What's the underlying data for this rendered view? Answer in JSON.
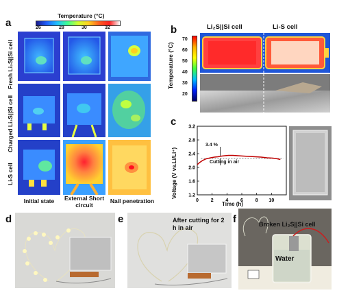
{
  "panel_a": {
    "label": "a",
    "colorbar_title": "Temperature (°C)",
    "colorbar_ticks": [
      "26",
      "28",
      "30",
      "32"
    ],
    "rows": [
      "Fresh Li₂S||Si cell",
      "Charged Li₂S||Si cell",
      "Li-S cell"
    ],
    "cols": [
      "Initial state",
      "External Short circuit",
      "Nail penetration"
    ]
  },
  "panel_b": {
    "label": "b",
    "left_title": "Li₂S||Si cell",
    "right_title": "Li-S cell",
    "ylabel": "Temperature (°C)",
    "colorbar_ticks": [
      "70",
      "60",
      "50",
      "40",
      "30",
      "20"
    ]
  },
  "panel_c": {
    "label": "c",
    "annotation_pct": "3.4 %",
    "annotation_text": "Cutting in air"
  },
  "panel_d": {
    "label": "d"
  },
  "panel_e": {
    "label": "e",
    "caption": "After cutting for 2 h in air"
  },
  "panel_f": {
    "label": "f",
    "caption": "Broken Li₂S||Si cell",
    "water_label": "Water"
  },
  "chart_data": {
    "type": "line",
    "xlabel": "Time (h)",
    "ylabel": "Voltage (V vs.Li/Li⁺)",
    "xlim": [
      0,
      12
    ],
    "ylim": [
      1.2,
      3.2
    ],
    "xticks": [
      0,
      2,
      4,
      6,
      8,
      10
    ],
    "yticks": [
      1.2,
      1.6,
      2.0,
      2.4,
      2.8,
      3.2
    ],
    "series": [
      {
        "x": [
          0,
          0.3,
          0.7,
          1.2,
          1.8,
          2.3,
          2.8,
          3.3,
          3.7,
          4.2,
          4.8,
          5.5,
          6.2,
          7.0,
          7.8,
          8.6,
          9.4,
          10.2,
          10.8,
          11.2
        ],
        "y": [
          2.08,
          2.14,
          2.2,
          2.25,
          2.28,
          2.3,
          2.31,
          2.33,
          2.34,
          2.35,
          2.35,
          2.34,
          2.33,
          2.32,
          2.31,
          2.3,
          2.28,
          2.27,
          2.25,
          2.23
        ]
      }
    ],
    "reference_line_y": 2.26,
    "cutting_time": 3.1
  }
}
